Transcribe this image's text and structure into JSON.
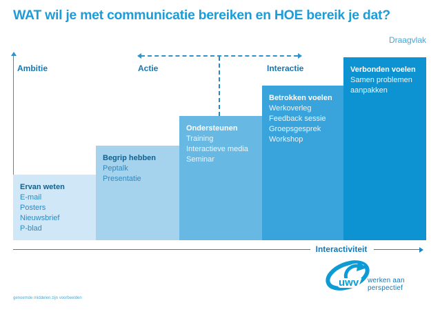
{
  "title": "WAT wil je met communicatie bereiken en HOE bereik je dat?",
  "header": {
    "right_label": "Draagvlak"
  },
  "axis": {
    "categories": [
      "Ambitie",
      "Actie",
      "Interactie"
    ],
    "x_label": "Interactiviteit"
  },
  "blocks": [
    {
      "title": "Ervan weten",
      "items": [
        "E-mail",
        "Posters",
        "Nieuwsbrief",
        "P-blad"
      ],
      "color": "#cfe7f6"
    },
    {
      "title": "Begrip hebben",
      "items": [
        "Peptalk",
        "Presentatie"
      ],
      "color": "#a5d2ec"
    },
    {
      "title": "Ondersteunen",
      "items": [
        "Training",
        "Interactieve media",
        "Seminar"
      ],
      "color": "#67b9e3"
    },
    {
      "title": "Betrokken voelen",
      "items": [
        "Werkoverleg",
        "Feedback sessie",
        "Groepsgesprek",
        "Workshop"
      ],
      "color": "#39a3db"
    },
    {
      "title": "Verbonden voelen",
      "items": [
        "Samen problemen aanpakken"
      ],
      "color": "#0d92d2"
    }
  ],
  "footer": {
    "note": "genoemde middelen zijn voorbeelden",
    "logo_text": "uwv",
    "tagline": "werken aan perspectief"
  },
  "colors": {
    "title_blue": "#1e9cd7",
    "accent_dark": "#1577b3",
    "accent_light": "#41a7dc",
    "line_blue": "#2e93cc",
    "logo_blue": "#0c9bd4"
  }
}
